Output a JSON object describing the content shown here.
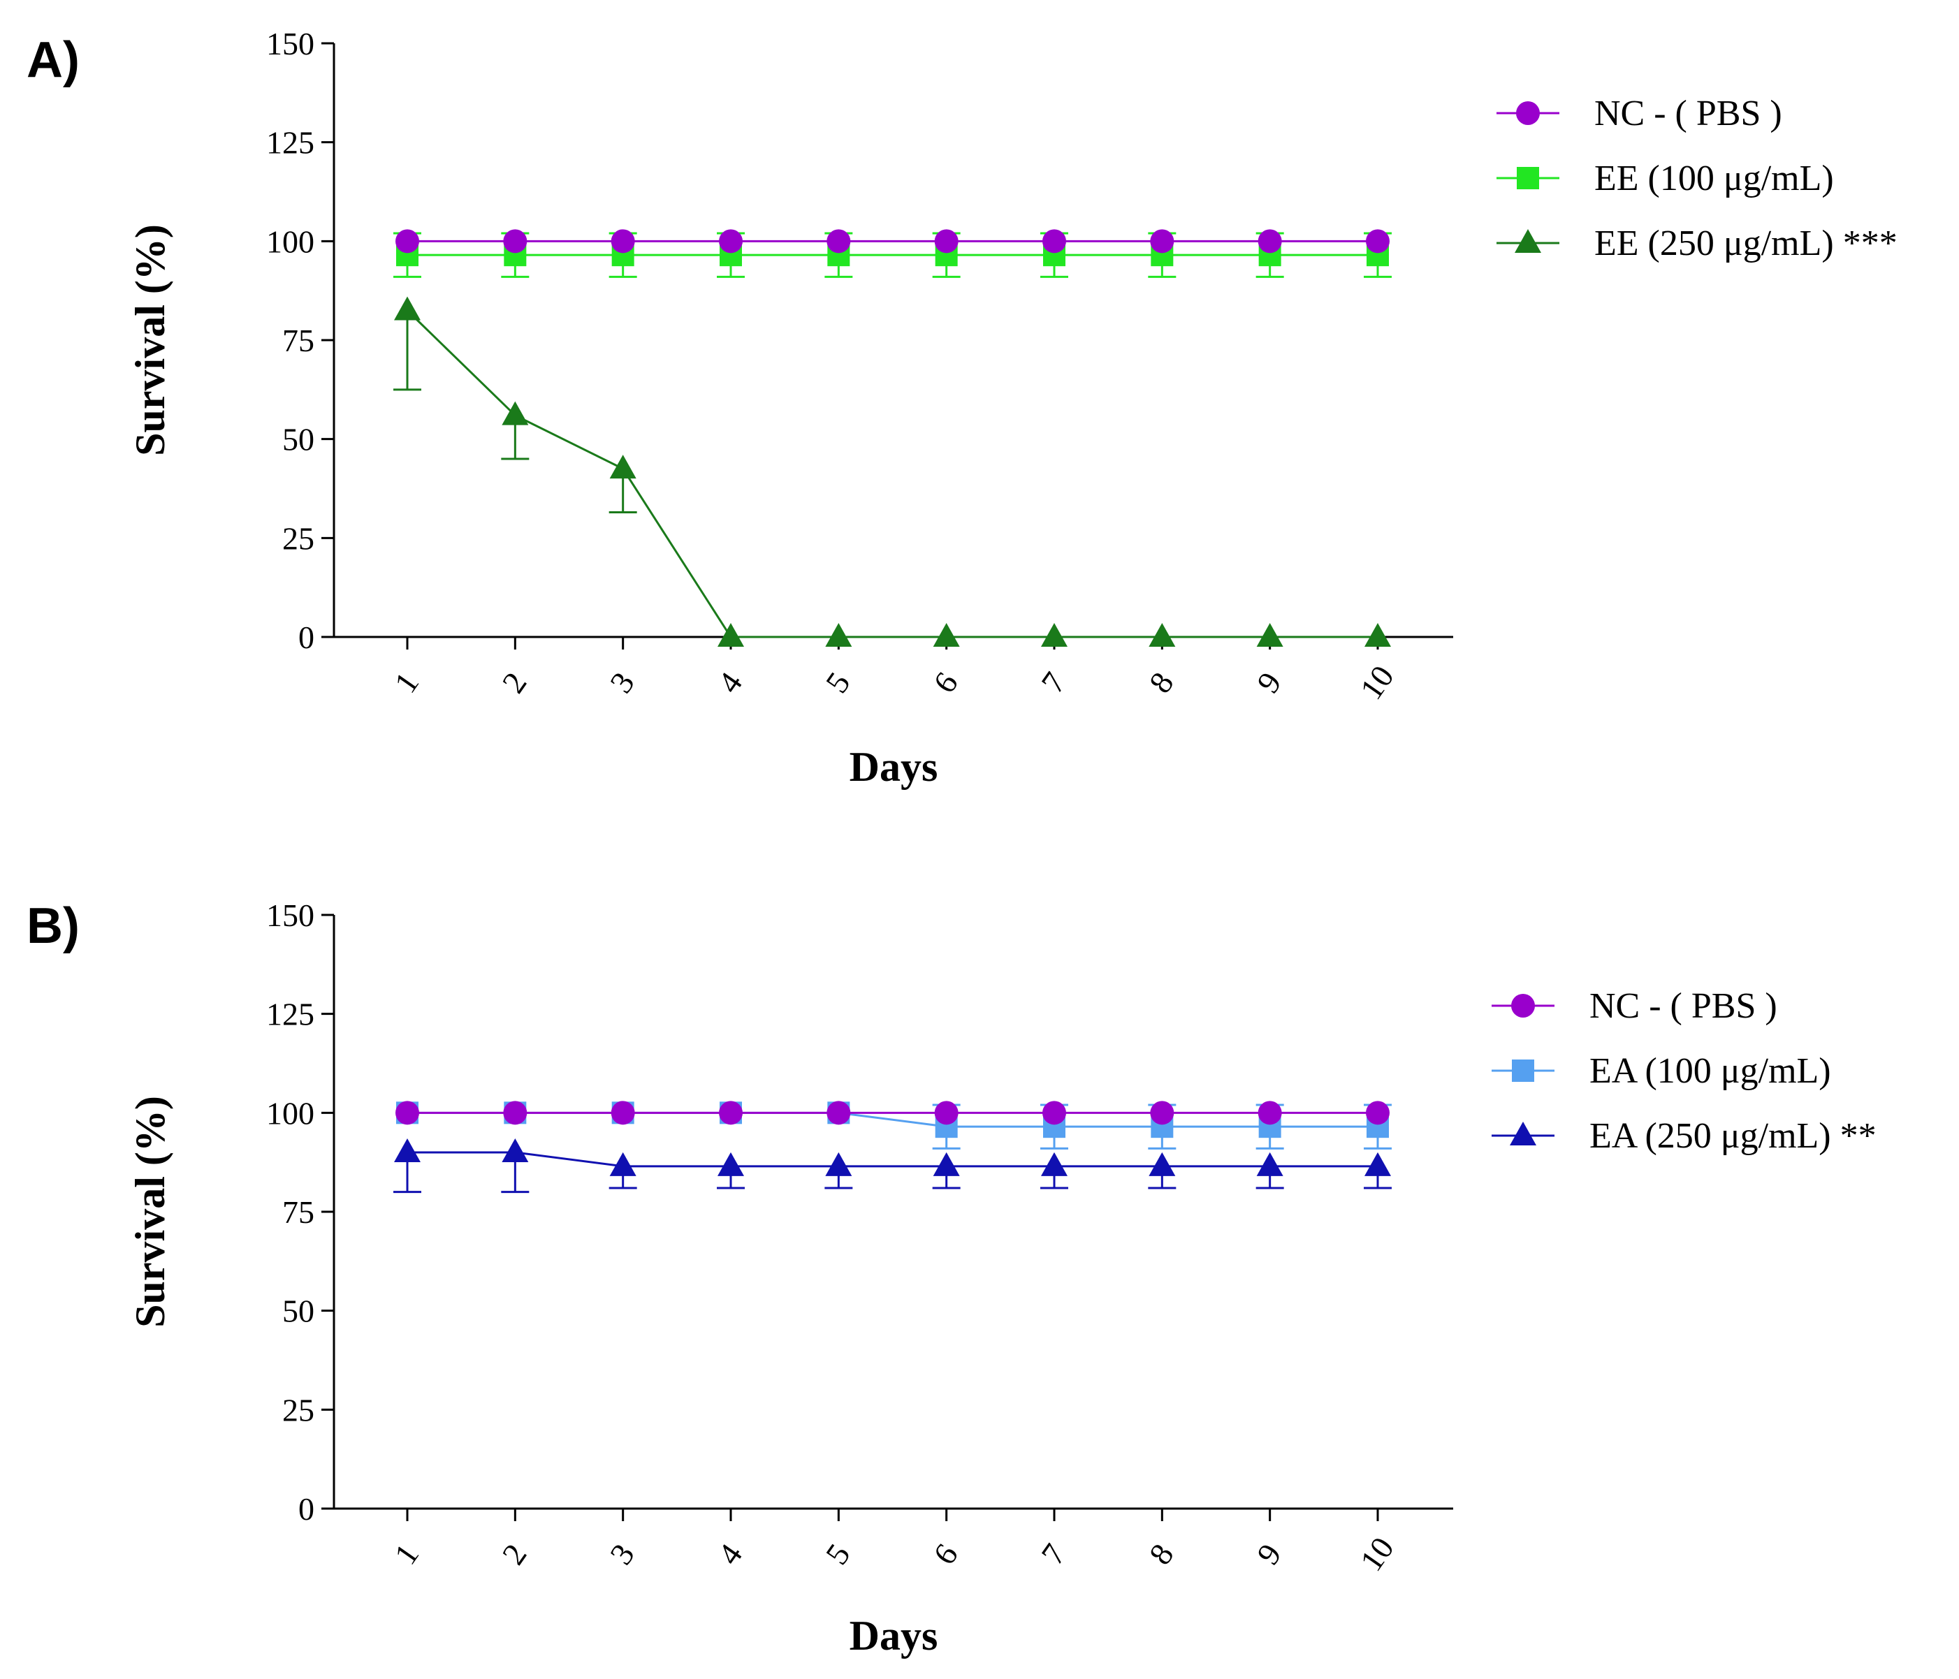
{
  "chart_data": [
    {
      "type": "line",
      "panel_label": "A)",
      "title": "",
      "xlabel": "Days",
      "ylabel": "Survival (%)",
      "ylim": [
        0,
        150
      ],
      "yticks": [
        "0",
        "25",
        "50",
        "75",
        "100",
        "125",
        "150"
      ],
      "categories": [
        "1",
        "2",
        "3",
        "4",
        "5",
        "6",
        "7",
        "8",
        "9",
        "10"
      ],
      "grid": false,
      "legend_position": "top-right",
      "series": [
        {
          "name": "NC - ( PBS )",
          "color": "#9900cc",
          "marker": "circle",
          "values": [
            100,
            100,
            100,
            100,
            100,
            100,
            100,
            100,
            100,
            100
          ],
          "errors": [
            0,
            0,
            0,
            0,
            0,
            0,
            0,
            0,
            0,
            0
          ]
        },
        {
          "name": "EE (100 μg/mL)",
          "color": "#22e622",
          "marker": "square",
          "values": [
            96.5,
            96.5,
            96.5,
            96.5,
            96.5,
            96.5,
            96.5,
            96.5,
            96.5,
            96.5
          ],
          "errors": [
            5.5,
            5.5,
            5.5,
            5.5,
            5.5,
            5.5,
            5.5,
            5.5,
            5.5,
            5.5
          ]
        },
        {
          "name": "EE (250 μg/mL) ***",
          "color": "#1a7a1a",
          "marker": "triangle",
          "values": [
            82.5,
            56,
            42.5,
            0,
            0,
            0,
            0,
            0,
            0,
            0
          ],
          "errors": [
            20,
            11,
            11,
            0,
            0,
            0,
            0,
            0,
            0,
            0
          ]
        }
      ]
    },
    {
      "type": "line",
      "panel_label": "B)",
      "title": "",
      "xlabel": "Days",
      "ylabel": "Survival (%)",
      "ylim": [
        0,
        150
      ],
      "yticks": [
        "0",
        "25",
        "50",
        "75",
        "100",
        "125",
        "150"
      ],
      "categories": [
        "1",
        "2",
        "3",
        "4",
        "5",
        "6",
        "7",
        "8",
        "9",
        "10"
      ],
      "grid": false,
      "legend_position": "top-right",
      "series": [
        {
          "name": "NC - ( PBS )",
          "color": "#9900cc",
          "marker": "circle",
          "values": [
            100,
            100,
            100,
            100,
            100,
            100,
            100,
            100,
            100,
            100
          ],
          "errors": [
            0,
            0,
            0,
            0,
            0,
            0,
            0,
            0,
            0,
            0
          ]
        },
        {
          "name": "EA (100 μg/mL)",
          "color": "#55a0f0",
          "marker": "square",
          "values": [
            100,
            100,
            100,
            100,
            100,
            96.5,
            96.5,
            96.5,
            96.5,
            96.5
          ],
          "errors": [
            0,
            0,
            0,
            0,
            0,
            5.5,
            5.5,
            5.5,
            5.5,
            5.5
          ]
        },
        {
          "name": "EA (250 μg/mL) **",
          "color": "#1010b0",
          "marker": "triangle",
          "values": [
            90,
            90,
            86.5,
            86.5,
            86.5,
            86.5,
            86.5,
            86.5,
            86.5,
            86.5
          ],
          "errors": [
            10,
            10,
            5.5,
            5.5,
            5.5,
            5.5,
            5.5,
            5.5,
            5.5,
            5.5
          ]
        }
      ]
    }
  ]
}
